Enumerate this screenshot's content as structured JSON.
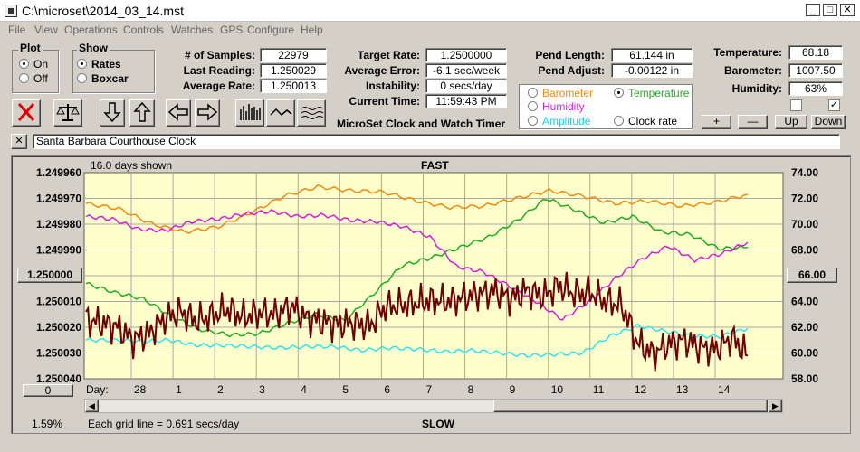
{
  "window": {
    "title": "C:\\microset\\2014_03_14.mst"
  },
  "menu": [
    "File",
    "View",
    "Operations",
    "Controls",
    "Watches",
    "GPS",
    "Configure",
    "Help"
  ],
  "plot_group": {
    "title": "Plot",
    "on": "On",
    "off": "Off",
    "selected": "On"
  },
  "show_group": {
    "title": "Show",
    "rates": "Rates",
    "boxcar": "Boxcar",
    "selected": "Rates"
  },
  "stats": {
    "samples_label": "# of Samples:",
    "samples": "22979",
    "last_label": "Last Reading:",
    "last": "1.250029",
    "avg_label": "Average Rate:",
    "avg": "1.250013",
    "target_label": "Target Rate:",
    "target": "1.2500000",
    "err_label": "Average Error:",
    "err": "-6.1 sec/week",
    "inst_label": "Instability:",
    "inst": "0 secs/day",
    "time_label": "Current Time:",
    "time": "11:59:43 PM",
    "pend_len_label": "Pend Length:",
    "pend_len": "61.144 in",
    "pend_adj_label": "Pend Adjust:",
    "pend_adj": "-0.00122 in",
    "temp_label": "Temperature:",
    "temp": "68.18",
    "baro_label": "Barometer:",
    "baro": "1007.50",
    "hum_label": "Humidity:",
    "hum": "63%"
  },
  "app_name": "MicroSet Clock and Watch Timer",
  "series_select": {
    "barometer": "Barometer",
    "temperature": "Temperature",
    "humidity": "Humidity",
    "amplitude": "Amplitude",
    "clock_rate": "Clock rate",
    "selected": "Temperature"
  },
  "small_buttons": {
    "plus": "+",
    "minus": "—",
    "up": "Up",
    "down": "Down"
  },
  "checkboxes": {
    "left": false,
    "right": true
  },
  "clock_name": "Santa Barbara Courthouse Clock",
  "close_x": "✕",
  "chart_header": {
    "days_shown": "16.0 days shown",
    "fast": "FAST",
    "slow": "SLOW"
  },
  "left_center_value": "1.250000",
  "right_center_value": "66.00",
  "left_bottom_button": "0",
  "percent": "1.59%",
  "grid_note": "Each grid line = 0.691 secs/day",
  "day_label": "Day:",
  "colors": {
    "rate": "#6b0000",
    "temperature": "#22aa22",
    "barometer": "#f08a10",
    "humidity": "#d020d8",
    "amplitude": "#33e0f0",
    "plot_bg": "#ffffcc",
    "grid": "#a8a8a8"
  },
  "chart_data": {
    "type": "line",
    "y_left_ticks": [
      "1.249960",
      "1.249970",
      "1.249980",
      "1.249990",
      "1.250000",
      "1.250010",
      "1.250020",
      "1.250030",
      "1.250040"
    ],
    "y_right_ticks": [
      "74.00",
      "72.00",
      "70.00",
      "68.00",
      "66.00",
      "64.00",
      "62.00",
      "60.00",
      "58.00"
    ],
    "x_tick_labels": [
      "28",
      "1",
      "2",
      "3",
      "4",
      "5",
      "6",
      "7",
      "8",
      "9",
      "10",
      "11",
      "12",
      "13",
      "14"
    ],
    "ylim_right": [
      58,
      74
    ],
    "series": [
      {
        "key": "barometer",
        "values": [
          71.6,
          71.2,
          70.0,
          69.4,
          69.8,
          70.9,
          72.2,
          72.9,
          72.6,
          72.5,
          71.8,
          71.3,
          71.4,
          72.0,
          72.6,
          72.2,
          71.6,
          71.8,
          71.4,
          71.7,
          72.3
        ]
      },
      {
        "key": "temperature",
        "values": [
          65.4,
          64.7,
          64.2,
          62.8,
          61.8,
          61.4,
          61.5,
          62.3,
          63.0,
          62.5,
          64.6,
          66.8,
          67.4,
          68.2,
          69.0,
          70.3,
          72.0,
          71.1,
          70.1,
          70.6,
          69.4,
          69.2,
          68.1,
          68.2
        ]
      },
      {
        "key": "humidity",
        "values": [
          70.6,
          70.4,
          69.6,
          69.5,
          70.2,
          70.4,
          70.8,
          71.0,
          70.6,
          70.7,
          70.3,
          70.2,
          69.8,
          69.0,
          66.7,
          66.3,
          65.2,
          64.0,
          62.6,
          64.0,
          65.8,
          67.3,
          68.3,
          67.2,
          67.7,
          68.6
        ]
      },
      {
        "key": "amplitude",
        "values": [
          61.0,
          61.0,
          60.9,
          61.0,
          60.6,
          60.6,
          60.5,
          60.4,
          60.5,
          60.5,
          60.2,
          60.4,
          60.3,
          60.1,
          60.2,
          60.0,
          59.8,
          59.9,
          60.0,
          61.3,
          62.1,
          61.7,
          61.3,
          61.3,
          61.9
        ]
      },
      {
        "key": "rate",
        "values": [
          62.6,
          62.3,
          62.0,
          61.0,
          61.5,
          62.7,
          63.2,
          62.5,
          62.9,
          63.4,
          62.8,
          63.1,
          63.0,
          63.6,
          62.7,
          62.4,
          62.2,
          62.3,
          62.1,
          63.6,
          63.7,
          63.9,
          64.1,
          64.0,
          64.3,
          64.6,
          64.8,
          64.2,
          64.9,
          64.4,
          65.2,
          64.6,
          64.7,
          64.0,
          63.7,
          60.8,
          59.9,
          60.7,
          61.0,
          60.4,
          60.3,
          61.2,
          59.8
        ]
      }
    ]
  }
}
